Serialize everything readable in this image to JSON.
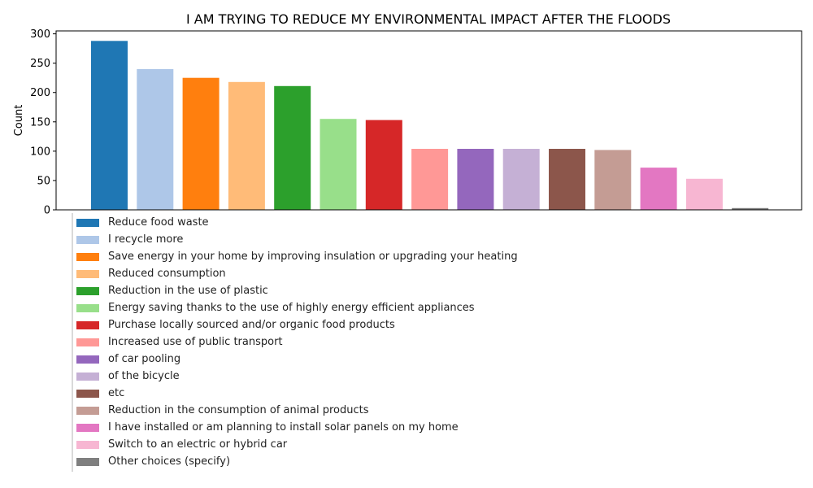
{
  "chart_data": {
    "type": "bar",
    "title": "I AM TRYING TO REDUCE MY ENVIRONMENTAL IMPACT AFTER THE FLOODS",
    "xlabel": "",
    "ylabel": "Count",
    "ylim": [
      0,
      305
    ],
    "yticks": [
      0,
      50,
      100,
      150,
      200,
      250,
      300
    ],
    "grid": false,
    "legend_position": "below",
    "categories": [
      "Reduce food waste",
      "I recycle more",
      "Save energy in your home by improving insulation or upgrading your heating",
      "Reduced consumption",
      "Reduction in the use of plastic",
      "Energy saving thanks to the use of highly energy efficient appliances",
      "Purchase locally sourced and/or organic food products",
      "Increased use of public transport",
      "of car pooling",
      "of the bicycle",
      "etc",
      "Reduction in the consumption of animal products",
      "I have installed or am planning to install solar panels on my home",
      "Switch to an electric or hybrid car",
      "Other choices (specify)"
    ],
    "values": [
      288,
      240,
      225,
      218,
      211,
      155,
      153,
      104,
      104,
      104,
      104,
      102,
      72,
      53,
      3
    ],
    "colors": [
      "#1f77b4",
      "#aec7e8",
      "#ff7f0e",
      "#ffbb78",
      "#2ca02c",
      "#98df8a",
      "#d62728",
      "#ff9896",
      "#9467bd",
      "#c5b0d5",
      "#8c564b",
      "#c49c94",
      "#e377c2",
      "#f7b6d2",
      "#7f7f7f"
    ]
  }
}
